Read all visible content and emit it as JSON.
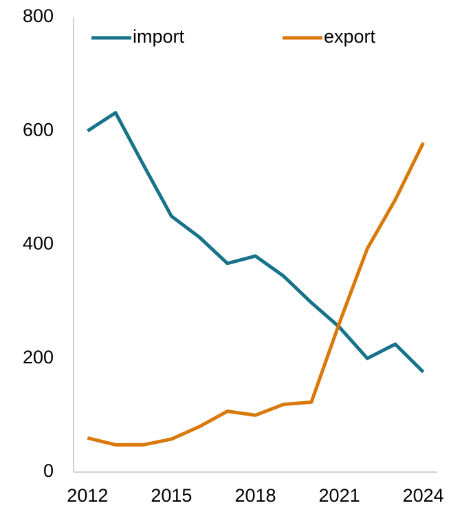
{
  "chart_data": {
    "type": "line",
    "x": [
      2012,
      2013,
      2014,
      2015,
      2016,
      2017,
      2018,
      2019,
      2020,
      2021,
      2022,
      2023,
      2024
    ],
    "series": [
      {
        "name": "import",
        "color": "#17738a",
        "values": [
          600,
          632,
          540,
          450,
          413,
          367,
          380,
          345,
          298,
          255,
          200,
          225,
          176
        ]
      },
      {
        "name": "export",
        "color": "#d9790b",
        "values": [
          60,
          48,
          48,
          58,
          80,
          107,
          100,
          119,
          123,
          262,
          393,
          479,
          579
        ]
      }
    ],
    "xlim": [
      2011.5,
      2024.5
    ],
    "xticks": [
      2012,
      2015,
      2018,
      2021,
      2024
    ],
    "ylim": [
      0,
      800
    ],
    "yticks": [
      0,
      200,
      400,
      600,
      800
    ],
    "grid": false,
    "legend": "top"
  }
}
